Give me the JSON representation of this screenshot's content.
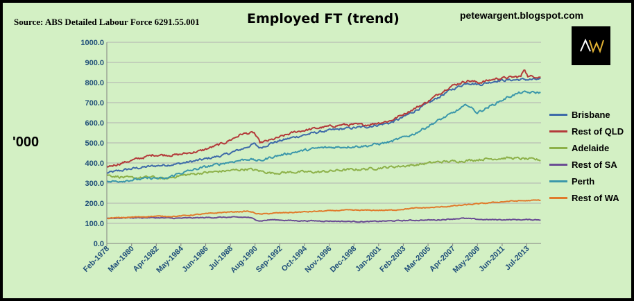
{
  "header": {
    "source": "Source: ABS Detailed Labour Force 6291.55.001",
    "title": "Employed FT (trend)",
    "blog": "petewargent.blogspot.com",
    "units": "'000",
    "logo_text": "AW"
  },
  "colors": {
    "background": "#d3f0c4",
    "grid": "#b0b0b0",
    "axis_text": "#1f4e79"
  },
  "chart_data": {
    "type": "line",
    "title": "Employed FT (trend)",
    "ylabel": "'000",
    "xlabel": "",
    "ylim": [
      0,
      1000
    ],
    "xlim": [
      1978.08,
      2014.7
    ],
    "yticks": [
      0,
      100,
      200,
      300,
      400,
      500,
      600,
      700,
      800,
      900,
      1000
    ],
    "ytick_labels": [
      "0.0",
      "100.0",
      "200.0",
      "300.0",
      "400.0",
      "500.0",
      "600.0",
      "700.0",
      "800.0",
      "900.0",
      "1000.0"
    ],
    "xtick_values": [
      1978.08,
      1980.17,
      1982.25,
      1984.33,
      1986.42,
      1988.5,
      1990.58,
      1992.67,
      1994.75,
      1996.83,
      1998.92,
      2001.0,
      2003.08,
      2005.17,
      2007.25,
      2009.33,
      2011.42,
      2013.5
    ],
    "xtick_labels": [
      "Feb-1978",
      "Mar-1980",
      "Apr-1982",
      "May-1984",
      "Jun-1986",
      "Jul-1988",
      "Aug-1990",
      "Sep-1992",
      "Oct-1994",
      "Nov-1996",
      "Dec-1998",
      "Jan-2001",
      "Feb-2003",
      "Mar-2005",
      "Apr-2007",
      "May-2009",
      "Jun-2011",
      "Jul-2013"
    ],
    "grid": "horizontal",
    "legend": "right",
    "series": [
      {
        "name": "Brisbane",
        "color": "#3d6aa8",
        "noise": 5,
        "x": [
          1978.08,
          1980,
          1982,
          1984,
          1986,
          1988,
          1989.5,
          1990.5,
          1991.0,
          1992,
          1994,
          1996,
          1998,
          2000,
          2002,
          2003,
          2005,
          2007,
          2008.5,
          2009.5,
          2011,
          2013,
          2014.7
        ],
        "y": [
          350,
          370,
          385,
          395,
          415,
          440,
          470,
          495,
          475,
          500,
          530,
          555,
          570,
          580,
          600,
          625,
          690,
          760,
          800,
          790,
          810,
          815,
          815
        ]
      },
      {
        "name": "Rest of QLD",
        "color": "#b33a3a",
        "noise": 5,
        "x": [
          1978.08,
          1980,
          1982,
          1984,
          1986,
          1988,
          1989.5,
          1990.5,
          1991.0,
          1992,
          1994,
          1996,
          1998,
          2000,
          2002,
          2003,
          2005,
          2007,
          2008.5,
          2009.5,
          2011,
          2013,
          2013.3,
          2013.6,
          2014.7
        ],
        "y": [
          380,
          410,
          440,
          440,
          460,
          500,
          545,
          550,
          500,
          515,
          555,
          575,
          590,
          590,
          610,
          640,
          700,
          780,
          810,
          800,
          820,
          830,
          870,
          830,
          830
        ]
      },
      {
        "name": "Adelaide",
        "color": "#8db14a",
        "noise": 5,
        "x": [
          1978.08,
          1980,
          1982,
          1983,
          1984,
          1986,
          1988,
          1990,
          1991,
          1992,
          1994,
          1996,
          1998,
          2000,
          2002,
          2004,
          2006,
          2008,
          2010,
          2012,
          2014.7
        ],
        "y": [
          340,
          325,
          330,
          320,
          335,
          350,
          360,
          370,
          360,
          350,
          355,
          355,
          365,
          370,
          380,
          390,
          405,
          410,
          420,
          425,
          415
        ]
      },
      {
        "name": "Rest of SA",
        "color": "#6a4c93",
        "noise": 2,
        "x": [
          1978.08,
          1980,
          1982,
          1984,
          1986,
          1988,
          1990,
          1991,
          1992,
          1994,
          1996,
          1998,
          2000,
          2002,
          2004,
          2006,
          2008,
          2010,
          2012,
          2014.7
        ],
        "y": [
          125,
          128,
          128,
          125,
          128,
          130,
          130,
          112,
          118,
          113,
          112,
          110,
          108,
          112,
          115,
          117,
          125,
          118,
          118,
          118
        ]
      },
      {
        "name": "Perth",
        "color": "#3b97aa",
        "noise": 5,
        "x": [
          1978.08,
          1980,
          1982,
          1983,
          1984,
          1986,
          1988,
          1990,
          1991,
          1992,
          1994,
          1996,
          1998,
          2000,
          2002,
          2004,
          2006,
          2007,
          2008.5,
          2009.3,
          2010,
          2012,
          2013,
          2014.7
        ],
        "y": [
          305,
          315,
          325,
          320,
          345,
          375,
          400,
          420,
          410,
          430,
          455,
          475,
          480,
          485,
          505,
          545,
          610,
          640,
          690,
          650,
          670,
          730,
          750,
          750
        ]
      },
      {
        "name": "Rest of WA",
        "color": "#e07b2c",
        "noise": 2,
        "x": [
          1978.08,
          1980,
          1982,
          1984,
          1986,
          1988,
          1990,
          1991,
          1992,
          1994,
          1996,
          1998,
          2000,
          2002,
          2004,
          2006,
          2008,
          2010,
          2012,
          2014.7
        ],
        "y": [
          125,
          130,
          135,
          135,
          145,
          155,
          160,
          145,
          150,
          155,
          160,
          165,
          165,
          165,
          175,
          180,
          190,
          200,
          210,
          215
        ]
      }
    ]
  }
}
